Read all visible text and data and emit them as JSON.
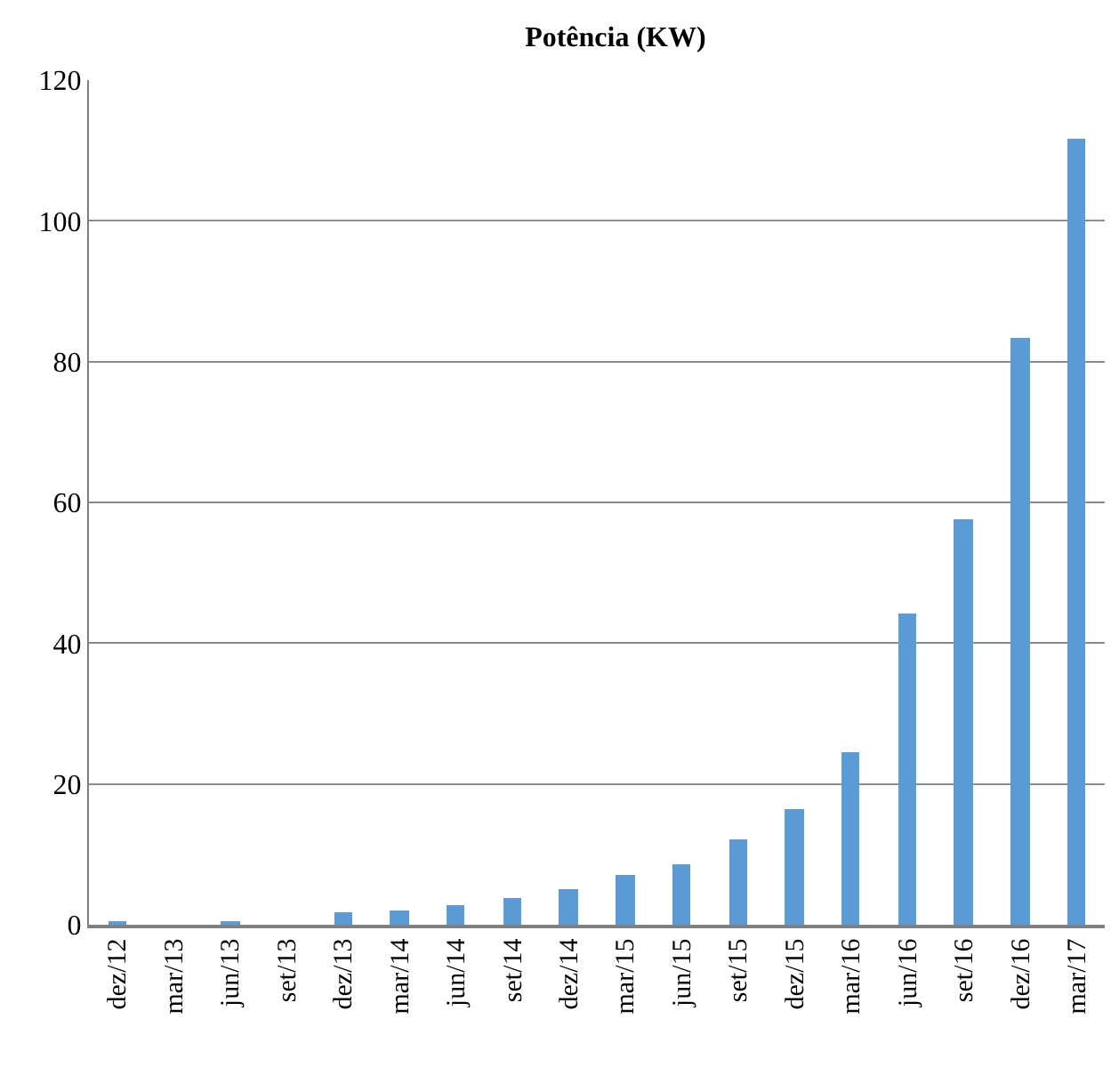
{
  "chart_data": {
    "type": "bar",
    "title": "Potência (KW)",
    "categories": [
      "dez/12",
      "mar/13",
      "jun/13",
      "set/13",
      "dez/13",
      "mar/14",
      "jun/14",
      "set/14",
      "dez/14",
      "mar/15",
      "jun/15",
      "set/15",
      "dez/15",
      "mar/16",
      "jun/16",
      "set/16",
      "dez/16",
      "mar/17"
    ],
    "values": [
      0.4,
      0,
      0.4,
      0,
      1.7,
      2.0,
      2.7,
      3.7,
      5.0,
      7.2,
      8.6,
      12.1,
      16.3,
      24.6,
      44.2,
      57.6,
      83.3,
      111.6
    ],
    "color": "#5b9bd5",
    "ylim": [
      0,
      120
    ],
    "yticks": [
      0,
      20,
      40,
      60,
      80,
      100,
      120
    ],
    "grid": "y",
    "legend": false
  }
}
